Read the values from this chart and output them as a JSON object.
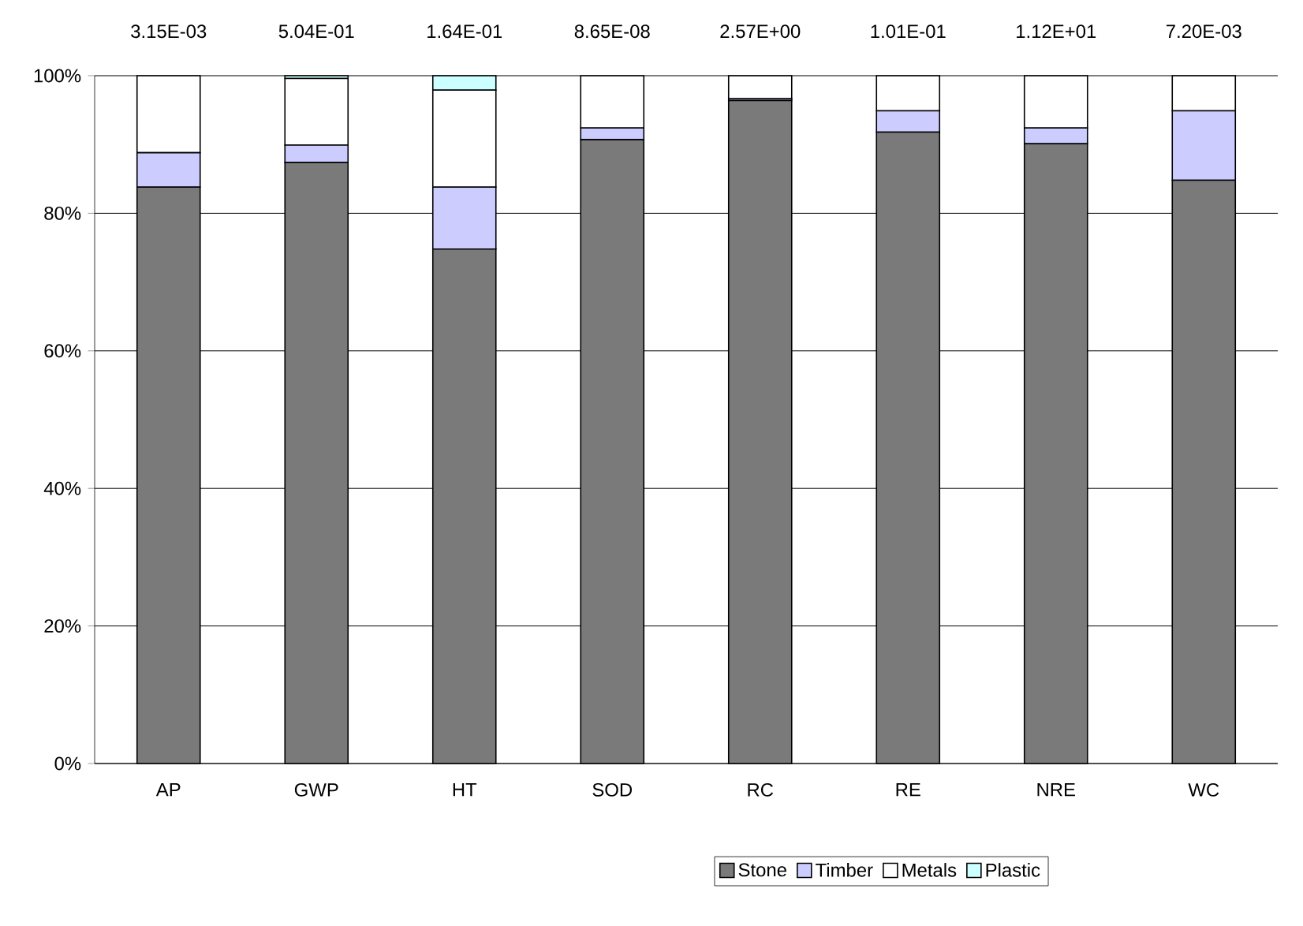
{
  "chart_data": {
    "type": "bar",
    "stacked": true,
    "categories": [
      "AP",
      "GWP",
      "HT",
      "SOD",
      "RC",
      "RE",
      "NRE",
      "WC"
    ],
    "series": [
      {
        "name": "Stone",
        "color": "#7a7a7a",
        "values": [
          83.8,
          87.4,
          74.8,
          90.7,
          96.4,
          91.8,
          90.1,
          84.8
        ]
      },
      {
        "name": "Timber",
        "color": "#ccccff",
        "values": [
          5.0,
          2.5,
          9.0,
          1.7,
          0.3,
          3.1,
          2.3,
          10.1
        ]
      },
      {
        "name": "Metals",
        "color": "#ffffff",
        "values": [
          11.2,
          9.7,
          14.1,
          7.6,
          3.3,
          5.1,
          7.6,
          5.1
        ]
      },
      {
        "name": "Plastic",
        "color": "#ccffff",
        "values": [
          0,
          0.4,
          2.1,
          0,
          0,
          0,
          0,
          0
        ]
      }
    ],
    "ylim": [
      0,
      100
    ],
    "yticks": [
      {
        "value": 0,
        "label": "0%"
      },
      {
        "value": 20,
        "label": "20%"
      },
      {
        "value": 40,
        "label": "40%"
      },
      {
        "value": 60,
        "label": "60%"
      },
      {
        "value": 80,
        "label": "80%"
      },
      {
        "value": 100,
        "label": "100%"
      }
    ],
    "annotations": [
      "3.15E-03",
      "5.04E-01",
      "1.64E-01",
      "8.65E-08",
      "2.57E+00",
      "1.01E-01",
      "1.12E+01",
      "7.20E-03"
    ],
    "grid": "y",
    "legend": "bottom"
  }
}
